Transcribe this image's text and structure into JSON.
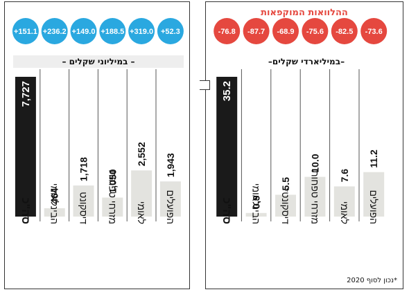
{
  "chart_data": [
    {
      "type": "bar",
      "id": "shekels-millions",
      "unit_label": "– במיליוני שקלים –",
      "categories": [
        "סה\"כ",
        "הבינלאומי",
        "דיסקונט",
        "מזרחי טפחות",
        "לאומי",
        "הפועלים"
      ],
      "values": [
        7727,
        464,
        1718,
        1050,
        2552,
        1943
      ],
      "value_labels": [
        "7,727",
        "464",
        "1,718",
        "1,050",
        "2,552",
        "1,943"
      ],
      "changes": [
        "+151.1",
        "+236.2",
        "+149.0",
        "+188.5",
        "+319.0",
        "+52.3"
      ],
      "change_color": "#2aa8e0",
      "total_color": "#1a1a1a",
      "bar_color": "#e3e3df",
      "scale_max": 7727
    },
    {
      "type": "bar",
      "id": "shekels-billions",
      "title": "ההלוואות המוקפאות",
      "unit_label": "–במיליארדי שקלים–",
      "categories": [
        "סה\"כ",
        "הבינלאומי",
        "דיסקונט*",
        "מזרחי טפחות",
        "לאומי",
        "הפועלים"
      ],
      "values": [
        35.2,
        0.9,
        5.5,
        10.0,
        7.6,
        11.2
      ],
      "value_labels": [
        "35.2",
        "0.9",
        "5.5",
        "10.0",
        "7.6",
        "11.2"
      ],
      "changes": [
        "-76.8",
        "-87.7",
        "-68.9",
        "-75.6",
        "-82.5",
        "-73.6"
      ],
      "change_color": "#e5483f",
      "total_color": "#1a1a1a",
      "bar_color": "#e3e3df",
      "scale_max": 35.2
    }
  ],
  "footnote": "*נכון לסוף 2020"
}
